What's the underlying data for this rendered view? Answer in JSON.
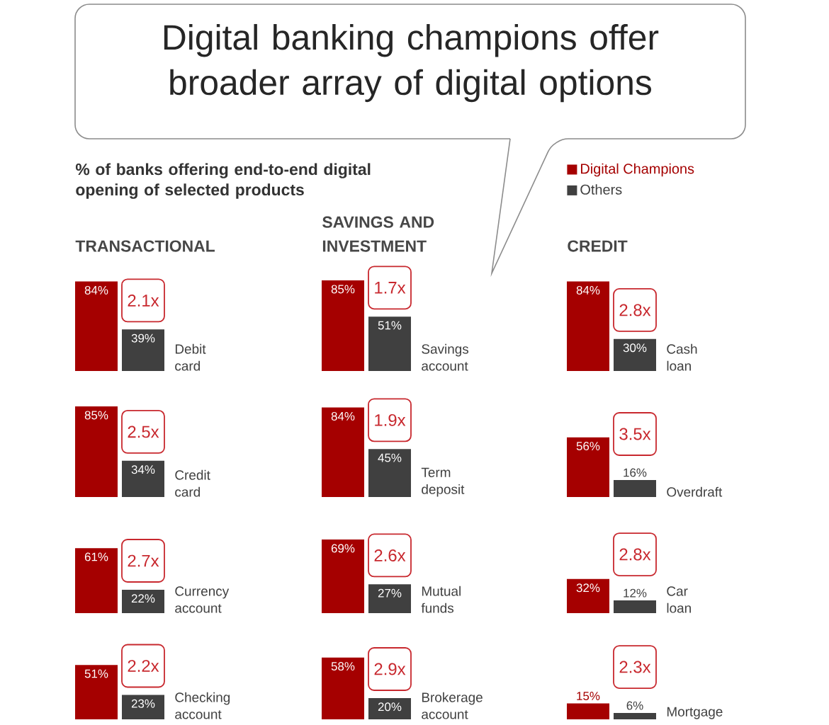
{
  "chart_data": [
    {
      "type": "other",
      "title": "Digital banking champions offer broader array of digital options",
      "subtitle": "% of banks offering end-to-end digital opening of selected products"
    },
    {
      "type": "bar",
      "title": "TRANSACTIONAL",
      "xlabel": "Debit card",
      "categories": [
        null
      ],
      "series": [
        {
          "color": "#a50000",
          "values": [
            84
          ],
          "value_labels": [
            "84%"
          ]
        },
        {
          "color": "#404040",
          "values": [
            39
          ],
          "value_labels": [
            "39%"
          ]
        }
      ],
      "annotations": [
        "2.1x"
      ]
    },
    {
      "type": "bar",
      "xlabel": "Credit card",
      "categories": [
        null
      ],
      "series": [
        {
          "color": "#a50000",
          "values": [
            85
          ],
          "value_labels": [
            "85%"
          ]
        },
        {
          "color": "#404040",
          "values": [
            34
          ],
          "value_labels": [
            "34%"
          ]
        }
      ],
      "annotations": [
        "2.5x"
      ]
    },
    {
      "type": "bar",
      "xlabel": "Currency account",
      "categories": [
        null
      ],
      "series": [
        {
          "color": "#a50000",
          "values": [
            61
          ],
          "value_labels": [
            "61%"
          ]
        },
        {
          "color": "#404040",
          "values": [
            22
          ],
          "value_labels": [
            "22%"
          ]
        }
      ],
      "annotations": [
        "2.7x"
      ]
    },
    {
      "type": "bar",
      "xlabel": "Checking account",
      "categories": [
        null
      ],
      "series": [
        {
          "color": "#a50000",
          "values": [
            51
          ],
          "value_labels": [
            "51%"
          ]
        },
        {
          "color": "#404040",
          "values": [
            23
          ],
          "value_labels": [
            "23%"
          ]
        }
      ],
      "annotations": [
        "2.2x"
      ]
    },
    {
      "type": "bar",
      "title": "SAVINGS AND INVESTMENT",
      "xlabel": "Savings account",
      "categories": [
        null
      ],
      "series": [
        {
          "color": "#a50000",
          "values": [
            85
          ],
          "value_labels": [
            "85%"
          ]
        },
        {
          "color": "#404040",
          "values": [
            51
          ],
          "value_labels": [
            "51%"
          ]
        }
      ],
      "annotations": [
        "1.7x"
      ]
    },
    {
      "type": "bar",
      "xlabel": "Term deposit",
      "categories": [
        null
      ],
      "series": [
        {
          "color": "#a50000",
          "values": [
            84
          ],
          "value_labels": [
            "84%"
          ]
        },
        {
          "color": "#404040",
          "values": [
            45
          ],
          "value_labels": [
            "45%"
          ]
        }
      ],
      "annotations": [
        "1.9x"
      ]
    },
    {
      "type": "bar",
      "xlabel": "Mutual funds",
      "categories": [
        null
      ],
      "series": [
        {
          "color": "#a50000",
          "values": [
            69
          ],
          "value_labels": [
            "69%"
          ]
        },
        {
          "color": "#404040",
          "values": [
            27
          ],
          "value_labels": [
            "27%"
          ]
        }
      ],
      "annotations": [
        "2.6x"
      ]
    },
    {
      "type": "bar",
      "xlabel": "Brokerage account",
      "categories": [
        null
      ],
      "series": [
        {
          "color": "#a50000",
          "values": [
            58
          ],
          "value_labels": [
            "58%"
          ]
        },
        {
          "color": "#404040",
          "values": [
            20
          ],
          "value_labels": [
            "20%"
          ]
        }
      ],
      "annotations": [
        "2.9x"
      ]
    },
    {
      "type": "bar",
      "title": "CREDIT",
      "xlabel": "Cash loan",
      "categories": [
        null
      ],
      "series": [
        {
          "name": "Digital Champions",
          "color": "#a50000",
          "values": [
            84
          ],
          "value_labels": [
            "84%"
          ]
        },
        {
          "name": "Others",
          "color": "#404040",
          "values": [
            30
          ],
          "value_labels": [
            "30%"
          ]
        }
      ],
      "annotations": [
        "2.8x"
      ],
      "legend": "top"
    },
    {
      "type": "bar",
      "xlabel": "Overdraft",
      "categories": [
        null
      ],
      "series": [
        {
          "color": "#a50000",
          "values": [
            56
          ],
          "value_labels": [
            "56%"
          ]
        },
        {
          "color": "#404040",
          "values": [
            16
          ],
          "value_labels": [
            "16%"
          ]
        }
      ],
      "annotations": [
        "3.5x"
      ]
    },
    {
      "type": "bar",
      "xlabel": "Car loan",
      "categories": [
        null
      ],
      "series": [
        {
          "color": "#a50000",
          "values": [
            32
          ],
          "value_labels": [
            "32%"
          ]
        },
        {
          "color": "#404040",
          "values": [
            12
          ],
          "value_labels": [
            "12%"
          ]
        }
      ],
      "annotations": [
        "2.8x"
      ]
    },
    {
      "type": "bar",
      "xlabel": "Mortgage",
      "categories": [
        null
      ],
      "series": [
        {
          "color": "#a50000",
          "values": [
            15
          ],
          "value_labels": [
            "15%"
          ]
        },
        {
          "color": "#404040",
          "values": [
            6
          ],
          "value_labels": [
            "6%"
          ]
        }
      ],
      "annotations": [
        "2.3x"
      ]
    }
  ]
}
